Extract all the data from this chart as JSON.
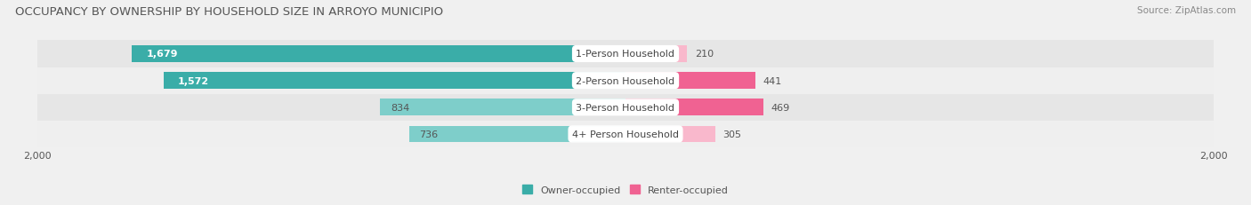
{
  "title": "OCCUPANCY BY OWNERSHIP BY HOUSEHOLD SIZE IN ARROYO MUNICIPIO",
  "source": "Source: ZipAtlas.com",
  "categories": [
    "1-Person Household",
    "2-Person Household",
    "3-Person Household",
    "4+ Person Household"
  ],
  "owner_values": [
    1679,
    1572,
    834,
    736
  ],
  "renter_values": [
    210,
    441,
    469,
    305
  ],
  "owner_colors": [
    "#3aada8",
    "#3aada8",
    "#7ececa",
    "#7ececa"
  ],
  "renter_colors": [
    "#f9b8cc",
    "#f06292",
    "#f06292",
    "#f9b8cc"
  ],
  "row_bg_colors": [
    "#efefef",
    "#e6e6e6",
    "#efefef",
    "#e6e6e6"
  ],
  "axis_max": 2000,
  "title_fontsize": 9.5,
  "source_fontsize": 7.5,
  "bar_label_fontsize": 8,
  "category_fontsize": 8,
  "axis_fontsize": 8,
  "legend_fontsize": 8,
  "owner_label_color_large": "#ffffff",
  "owner_label_color_small": "#555555",
  "renter_label_color": "#555555",
  "axis_label_color": "#555555",
  "legend_owner_color": "#3aada8",
  "legend_renter_color": "#f06292"
}
